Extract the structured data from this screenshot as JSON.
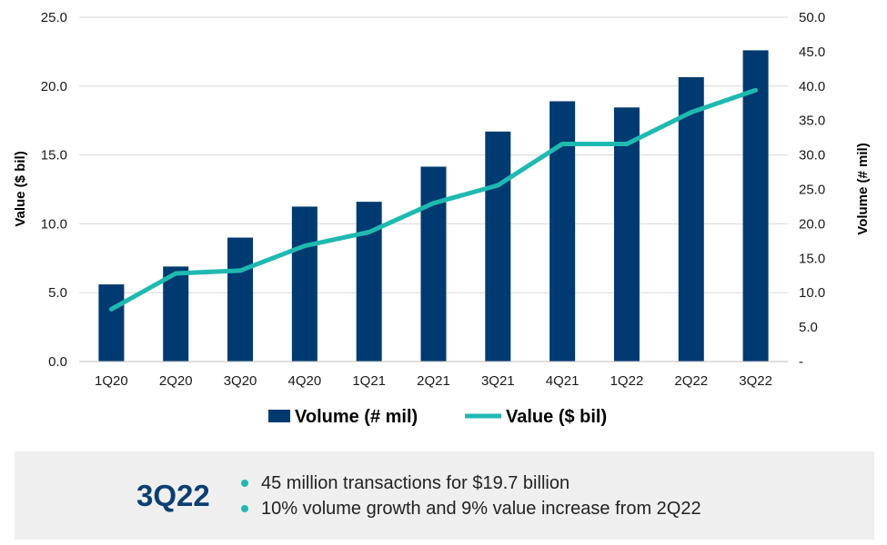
{
  "chart_data": {
    "type": "bar",
    "categories": [
      "1Q20",
      "2Q20",
      "3Q20",
      "4Q20",
      "1Q21",
      "2Q21",
      "3Q21",
      "4Q21",
      "1Q22",
      "2Q22",
      "3Q22"
    ],
    "series": [
      {
        "name": "Volume (# mil)",
        "type": "bar",
        "axis": "right",
        "values": [
          11.2,
          13.8,
          18.0,
          22.5,
          23.2,
          28.3,
          33.4,
          37.8,
          36.9,
          41.3,
          45.2
        ],
        "color": "#003a70"
      },
      {
        "name": "Value ($ bil)",
        "type": "line",
        "axis": "left",
        "values": [
          3.8,
          6.4,
          6.6,
          8.4,
          9.4,
          11.5,
          12.8,
          15.8,
          15.8,
          18.1,
          19.7
        ],
        "color": "#1fb9b0"
      }
    ],
    "ylabel_left": "Value ($ bil)",
    "ylabel_right": "Volume (# mil)",
    "ylim_left": [
      0,
      25
    ],
    "ylim_right": [
      0,
      50
    ],
    "yticks_left": [
      "0.0",
      "5.0",
      "10.0",
      "15.0",
      "20.0",
      "25.0"
    ],
    "yticks_right": [
      "-",
      "5.0",
      "10.0",
      "15.0",
      "20.0",
      "25.0",
      "30.0",
      "35.0",
      "40.0",
      "45.0",
      "50.0"
    ],
    "grid": true,
    "legend_position": "bottom"
  },
  "summary": {
    "period": "3Q22",
    "bullets": [
      "45 million transactions for $19.7 billion",
      "10% volume growth and 9% value increase from 2Q22"
    ],
    "bullet_color": "#1fb9b0",
    "period_color": "#0b3f72"
  }
}
